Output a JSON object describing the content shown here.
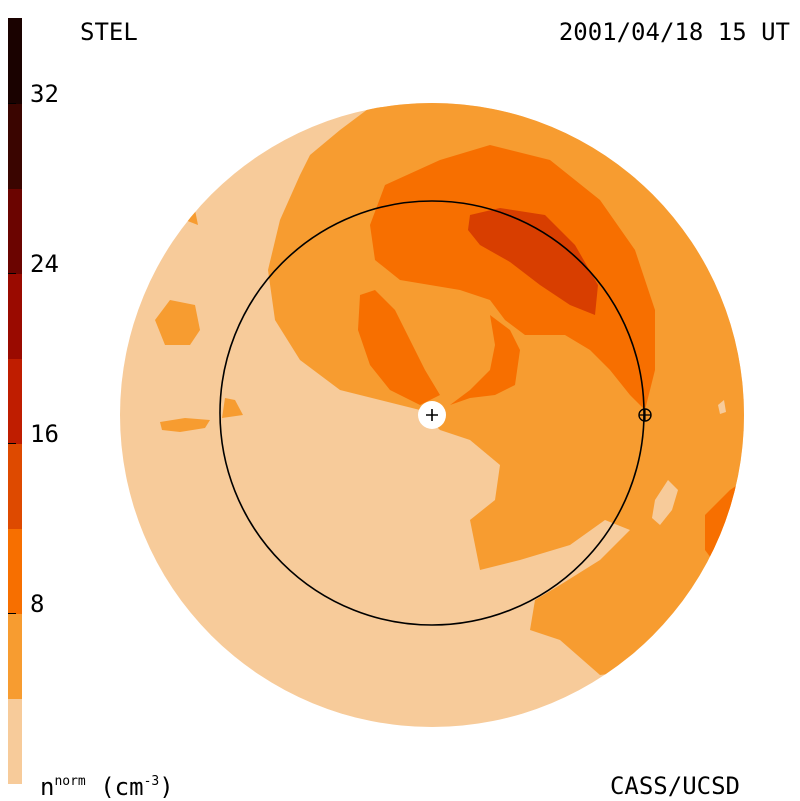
{
  "header": {
    "observatory": "STEL",
    "timestamp": "2001/04/18 15 UT"
  },
  "footer": {
    "credit": "CASS/UCSD"
  },
  "colorbar": {
    "unit_base": "n",
    "unit_sup": "norm",
    "unit_paren": "(cm",
    "unit_exp": "-3",
    "unit_close": ")",
    "ticks": [
      {
        "label": "8",
        "value": 8
      },
      {
        "label": "16",
        "value": 16
      },
      {
        "label": "24",
        "value": 24
      },
      {
        "label": "32",
        "value": 32
      }
    ],
    "levels": [
      {
        "from": 0,
        "to": 4,
        "color": "#f7cb9a"
      },
      {
        "from": 4,
        "to": 8,
        "color": "#f79c30"
      },
      {
        "from": 8,
        "to": 12,
        "color": "#f76f00"
      },
      {
        "from": 12,
        "to": 16,
        "color": "#de4a00"
      },
      {
        "from": 16,
        "to": 20,
        "color": "#bf1d00"
      },
      {
        "from": 20,
        "to": 24,
        "color": "#9a0a00"
      },
      {
        "from": 24,
        "to": 28,
        "color": "#6b0400"
      },
      {
        "from": 28,
        "to": 32,
        "color": "#3a0500"
      },
      {
        "from": 32,
        "to": 36,
        "color": "#1a0200"
      }
    ]
  },
  "map": {
    "background_color": "#f7cb9a",
    "level_colors": [
      "#f79c30",
      "#f76f00",
      "#d83e00"
    ],
    "markers": [
      "sun-marker",
      "earth-marker"
    ]
  }
}
